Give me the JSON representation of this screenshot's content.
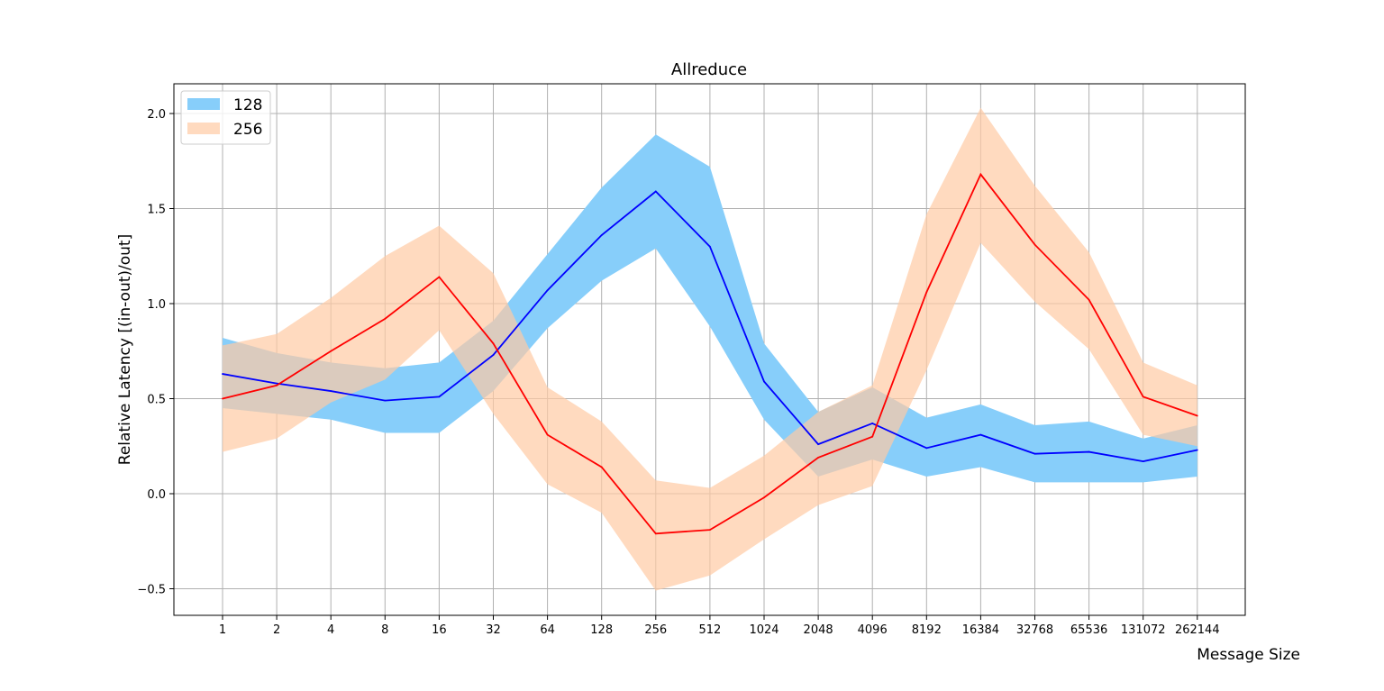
{
  "chart_data": {
    "type": "line",
    "title": "Allreduce",
    "xlabel": "Message Size",
    "ylabel": "Relative Latency [(in-out)/out]",
    "categories": [
      "1",
      "2",
      "4",
      "8",
      "16",
      "32",
      "64",
      "128",
      "256",
      "512",
      "1024",
      "2048",
      "4096",
      "8192",
      "16384",
      "32768",
      "65536",
      "131072",
      "262144"
    ],
    "yticks": [
      "−0.5",
      "0.0",
      "0.5",
      "1.0",
      "1.5",
      "2.0"
    ],
    "ylim": [
      -0.64,
      2.16
    ],
    "grid": true,
    "legend_position": "top-left",
    "series": [
      {
        "name": "128",
        "line_color": "#0000ff",
        "band_color": "#87cefa",
        "mean": [
          0.63,
          0.58,
          0.54,
          0.49,
          0.51,
          0.73,
          1.07,
          1.36,
          1.59,
          1.3,
          0.59,
          0.26,
          0.37,
          0.24,
          0.31,
          0.21,
          0.22,
          0.17,
          0.23
        ],
        "upper": [
          0.82,
          0.74,
          0.69,
          0.66,
          0.69,
          0.91,
          1.26,
          1.61,
          1.89,
          1.72,
          0.79,
          0.43,
          0.56,
          0.4,
          0.47,
          0.36,
          0.38,
          0.29,
          0.36
        ],
        "lower": [
          0.45,
          0.42,
          0.39,
          0.32,
          0.32,
          0.54,
          0.87,
          1.12,
          1.29,
          0.88,
          0.39,
          0.09,
          0.18,
          0.09,
          0.14,
          0.06,
          0.06,
          0.06,
          0.09
        ]
      },
      {
        "name": "256",
        "line_color": "#ff0000",
        "band_color": "#ffcba4",
        "mean": [
          0.5,
          0.57,
          0.75,
          0.92,
          1.14,
          0.79,
          0.31,
          0.14,
          -0.21,
          -0.19,
          -0.02,
          0.19,
          0.3,
          1.06,
          1.68,
          1.31,
          1.02,
          0.51,
          0.41
        ],
        "upper": [
          0.78,
          0.84,
          1.03,
          1.25,
          1.41,
          1.16,
          0.56,
          0.38,
          0.07,
          0.03,
          0.2,
          0.43,
          0.57,
          1.47,
          2.03,
          1.62,
          1.27,
          0.69,
          0.57
        ],
        "lower": [
          0.22,
          0.29,
          0.48,
          0.6,
          0.86,
          0.42,
          0.05,
          -0.1,
          -0.51,
          -0.43,
          -0.24,
          -0.06,
          0.04,
          0.65,
          1.32,
          1.01,
          0.76,
          0.31,
          0.25
        ]
      }
    ]
  }
}
